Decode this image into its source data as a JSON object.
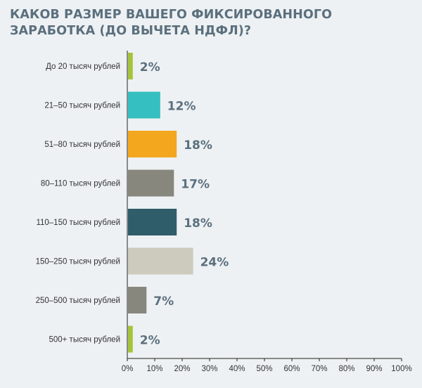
{
  "title_lines": [
    "КАКОВ РАЗМЕР ВАШЕГО ФИКСИРОВАННОГО",
    "ЗАРАБОТКА (ДО ВЫЧЕТА НДФЛ)?"
  ],
  "chart_data": {
    "type": "bar",
    "orientation": "horizontal",
    "categories": [
      "До 20 тысяч рублей",
      "21–50 тысяч рублей",
      "51–80 тысяч рублей",
      "80–110 тысяч рублей",
      "110–150 тысяч рублей",
      "150–250 тысяч рублей",
      "250–500 тысяч рублей",
      "500+ тысяч рублей"
    ],
    "values": [
      2,
      12,
      18,
      17,
      18,
      24,
      7,
      2
    ],
    "value_labels": [
      "2%",
      "12%",
      "18%",
      "17%",
      "18%",
      "24%",
      "7%",
      "2%"
    ],
    "colors": [
      "#a6c43b",
      "#35bfc0",
      "#f3a71e",
      "#87877d",
      "#2f5d69",
      "#cccbbd",
      "#87877d",
      "#a6c43b"
    ],
    "xlim": [
      0,
      100
    ],
    "x_ticks": [
      "0%",
      "10%",
      "20%",
      "30%",
      "40%",
      "50%",
      "60%",
      "70%",
      "80%",
      "90%",
      "100%"
    ],
    "grid": false,
    "legend": "none"
  }
}
